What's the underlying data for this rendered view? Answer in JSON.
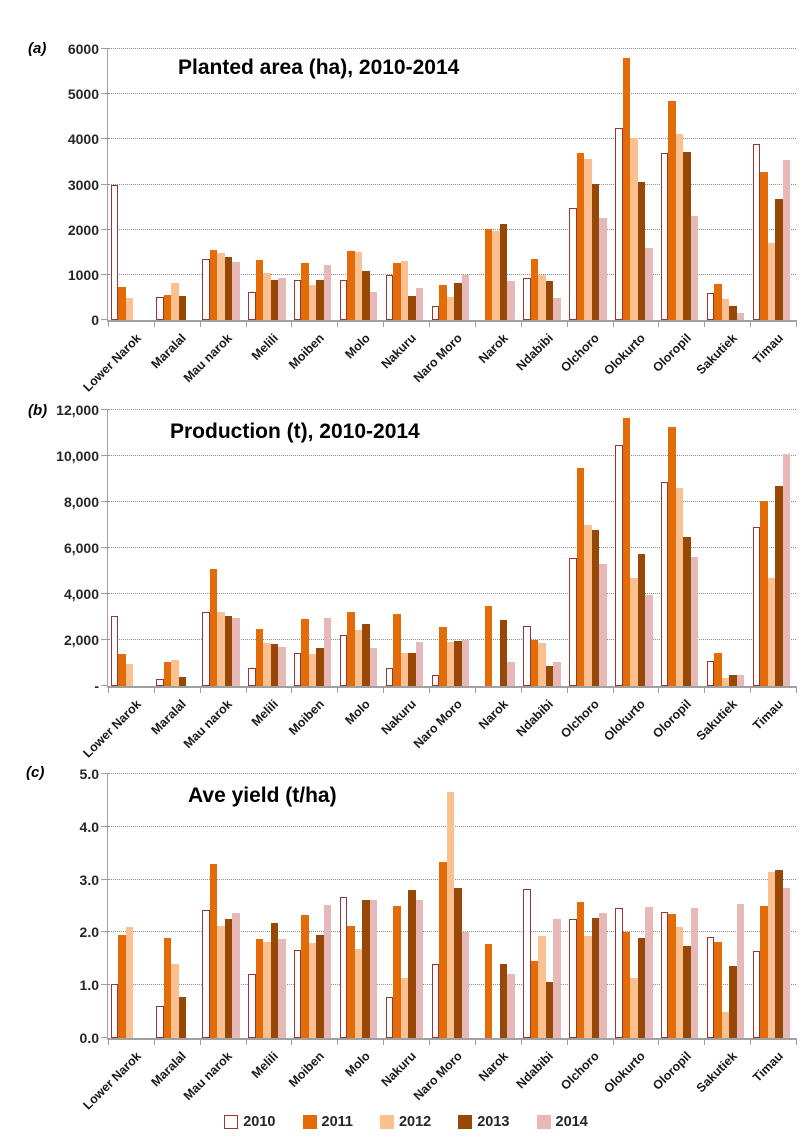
{
  "figure": {
    "background": "#ffffff"
  },
  "colors": {
    "s2010_fill": "#FFFEFD",
    "s2010_border": "#953735",
    "s2011": "#E36C09",
    "s2012": "#FAC08F",
    "s2013": "#974806",
    "s2014": "#E6B9B8",
    "gridline": "#8C8C8C",
    "axis": "#A0A0A0",
    "tick_text": "#262626"
  },
  "legend": {
    "items": [
      {
        "label": "2010",
        "fill": "#FFFEFD",
        "border": "#953735"
      },
      {
        "label": "2011",
        "fill": "#E36C09",
        "border": "#E36C09"
      },
      {
        "label": "2012",
        "fill": "#FAC08F",
        "border": "#FAC08F"
      },
      {
        "label": "2013",
        "fill": "#974806",
        "border": "#974806"
      },
      {
        "label": "2014",
        "fill": "#E6B9B8",
        "border": "#E6B9B8"
      }
    ]
  },
  "chart_data": [
    {
      "type": "bar",
      "panel_label": "(a)",
      "title": "Planted area (ha), 2010-2014",
      "ylabel": "",
      "xlabel": "",
      "ylim": [
        0,
        6000
      ],
      "grid": "dotted-horizontal",
      "legend_position": "bottom-shared",
      "yticks": [
        {
          "value": 6000,
          "label": "6000"
        },
        {
          "value": 5000,
          "label": "5000"
        },
        {
          "value": 4000,
          "label": "4000"
        },
        {
          "value": 3000,
          "label": "3000"
        },
        {
          "value": 2000,
          "label": "2000"
        },
        {
          "value": 1000,
          "label": "1000"
        },
        {
          "value": 0,
          "label": "0"
        }
      ],
      "categories": [
        "Lower Narok",
        "Maralal",
        "Mau narok",
        "Melili",
        "Moiben",
        "Molo",
        "Nakuru",
        "Naro Moro",
        "Narok",
        "Ndabibi",
        "Olchoro",
        "Olokurto",
        "Oloropil",
        "Sakutiek",
        "Timau"
      ],
      "series": [
        {
          "name": "2010",
          "values": [
            2980,
            500,
            1360,
            630,
            890,
            875,
            990,
            300,
            0,
            920,
            2480,
            4250,
            3700,
            590,
            3900
          ]
        },
        {
          "name": "2011",
          "values": [
            720,
            560,
            1550,
            1320,
            1270,
            1530,
            1265,
            770,
            2010,
            1360,
            3700,
            5800,
            4850,
            790,
            3280
          ]
        },
        {
          "name": "2012",
          "values": [
            480,
            820,
            1490,
            1030,
            780,
            1500,
            1300,
            500,
            1960,
            990,
            3570,
            4020,
            4120,
            470,
            1700
          ]
        },
        {
          "name": "2013",
          "values": [
            0,
            530,
            1390,
            880,
            875,
            1080,
            530,
            810,
            2130,
            860,
            3010,
            3050,
            3720,
            310,
            2670
          ]
        },
        {
          "name": "2014",
          "values": [
            0,
            0,
            1280,
            920,
            1220,
            630,
            715,
            1000,
            870,
            490,
            2250,
            1600,
            2300,
            150,
            3550
          ]
        }
      ]
    },
    {
      "type": "bar",
      "panel_label": "(b)",
      "title": "Production (t), 2010-2014",
      "ylabel": "",
      "xlabel": "",
      "ylim": [
        0,
        12000
      ],
      "grid": "dotted-horizontal",
      "legend_position": "bottom-shared",
      "yticks": [
        {
          "value": 12000,
          "label": "12,000"
        },
        {
          "value": 10000,
          "label": "10,000"
        },
        {
          "value": 8000,
          "label": "8,000"
        },
        {
          "value": 6000,
          "label": "6,000"
        },
        {
          "value": 4000,
          "label": "4,000"
        },
        {
          "value": 2000,
          "label": "2,000"
        },
        {
          "value": 0,
          "label": "-"
        }
      ],
      "categories": [
        "Lower Narok",
        "Maralal",
        "Mau narok",
        "Melili",
        "Moiben",
        "Molo",
        "Nakuru",
        "Naro Moro",
        "Narok",
        "Ndabibi",
        "Olchoro",
        "Olokurto",
        "Oloropil",
        "Sakutiek",
        "Timau"
      ],
      "series": [
        {
          "name": "2010",
          "values": [
            3050,
            300,
            3200,
            800,
            1450,
            2200,
            800,
            500,
            0,
            2600,
            5550,
            10500,
            8850,
            1100,
            6900
          ]
        },
        {
          "name": "2011",
          "values": [
            1400,
            1050,
            5100,
            2470,
            2900,
            3200,
            3150,
            2550,
            3500,
            1990,
            9500,
            11650,
            11250,
            1450,
            8050
          ]
        },
        {
          "name": "2012",
          "values": [
            950,
            1150,
            3200,
            1890,
            1400,
            2450,
            1450,
            1900,
            0,
            1870,
            7000,
            4700,
            8600,
            330,
            4700
          ]
        },
        {
          "name": "2013",
          "values": [
            0,
            400,
            3050,
            1840,
            1650,
            2700,
            1450,
            1950,
            2870,
            870,
            6800,
            5750,
            6500,
            470,
            8700
          ]
        },
        {
          "name": "2014",
          "values": [
            0,
            0,
            2950,
            1700,
            2950,
            1650,
            1900,
            2000,
            1050,
            1050,
            5300,
            3950,
            5600,
            470,
            10100
          ]
        }
      ]
    },
    {
      "type": "bar",
      "panel_label": "(c)",
      "title": "Ave yield (t/ha)",
      "ylabel": "",
      "xlabel": "",
      "ylim": [
        0,
        5
      ],
      "grid": "dotted-horizontal",
      "legend_position": "bottom-shared",
      "yticks": [
        {
          "value": 5,
          "label": "5.0"
        },
        {
          "value": 4,
          "label": "4.0"
        },
        {
          "value": 3,
          "label": "3.0"
        },
        {
          "value": 2,
          "label": "2.0"
        },
        {
          "value": 1,
          "label": "1.0"
        },
        {
          "value": 0,
          "label": "0.0"
        }
      ],
      "categories": [
        "Lower Narok",
        "Maralal",
        "Mau narok",
        "Melili",
        "Moiben",
        "Molo",
        "Nakuru",
        "Naro Moro",
        "Narok",
        "Ndabibi",
        "Olchoro",
        "Olokurto",
        "Oloropil",
        "Sakutiek",
        "Timau"
      ],
      "series": [
        {
          "name": "2010",
          "values": [
            1.03,
            0.6,
            2.43,
            1.22,
            1.66,
            2.68,
            0.78,
            1.4,
            0,
            2.82,
            2.25,
            2.47,
            2.39,
            1.92,
            1.65
          ]
        },
        {
          "name": "2011",
          "values": [
            1.95,
            1.9,
            3.3,
            1.87,
            2.33,
            2.13,
            2.5,
            3.33,
            1.78,
            1.45,
            2.58,
            2.01,
            2.35,
            1.82,
            2.5
          ]
        },
        {
          "name": "2012",
          "values": [
            2.1,
            1.4,
            2.13,
            1.82,
            1.8,
            1.68,
            1.14,
            4.65,
            0,
            1.94,
            1.93,
            1.14,
            2.11,
            0.5,
            3.15
          ]
        },
        {
          "name": "2013",
          "values": [
            0,
            0.77,
            2.26,
            2.17,
            1.96,
            2.62,
            2.8,
            2.85,
            1.4,
            1.06,
            2.27,
            1.9,
            1.74,
            1.36,
            3.18
          ]
        },
        {
          "name": "2014",
          "values": [
            0,
            0,
            2.37,
            1.88,
            2.52,
            2.62,
            2.61,
            2.0,
            1.22,
            2.25,
            2.36,
            2.49,
            2.46,
            2.54,
            2.84
          ]
        }
      ]
    }
  ]
}
